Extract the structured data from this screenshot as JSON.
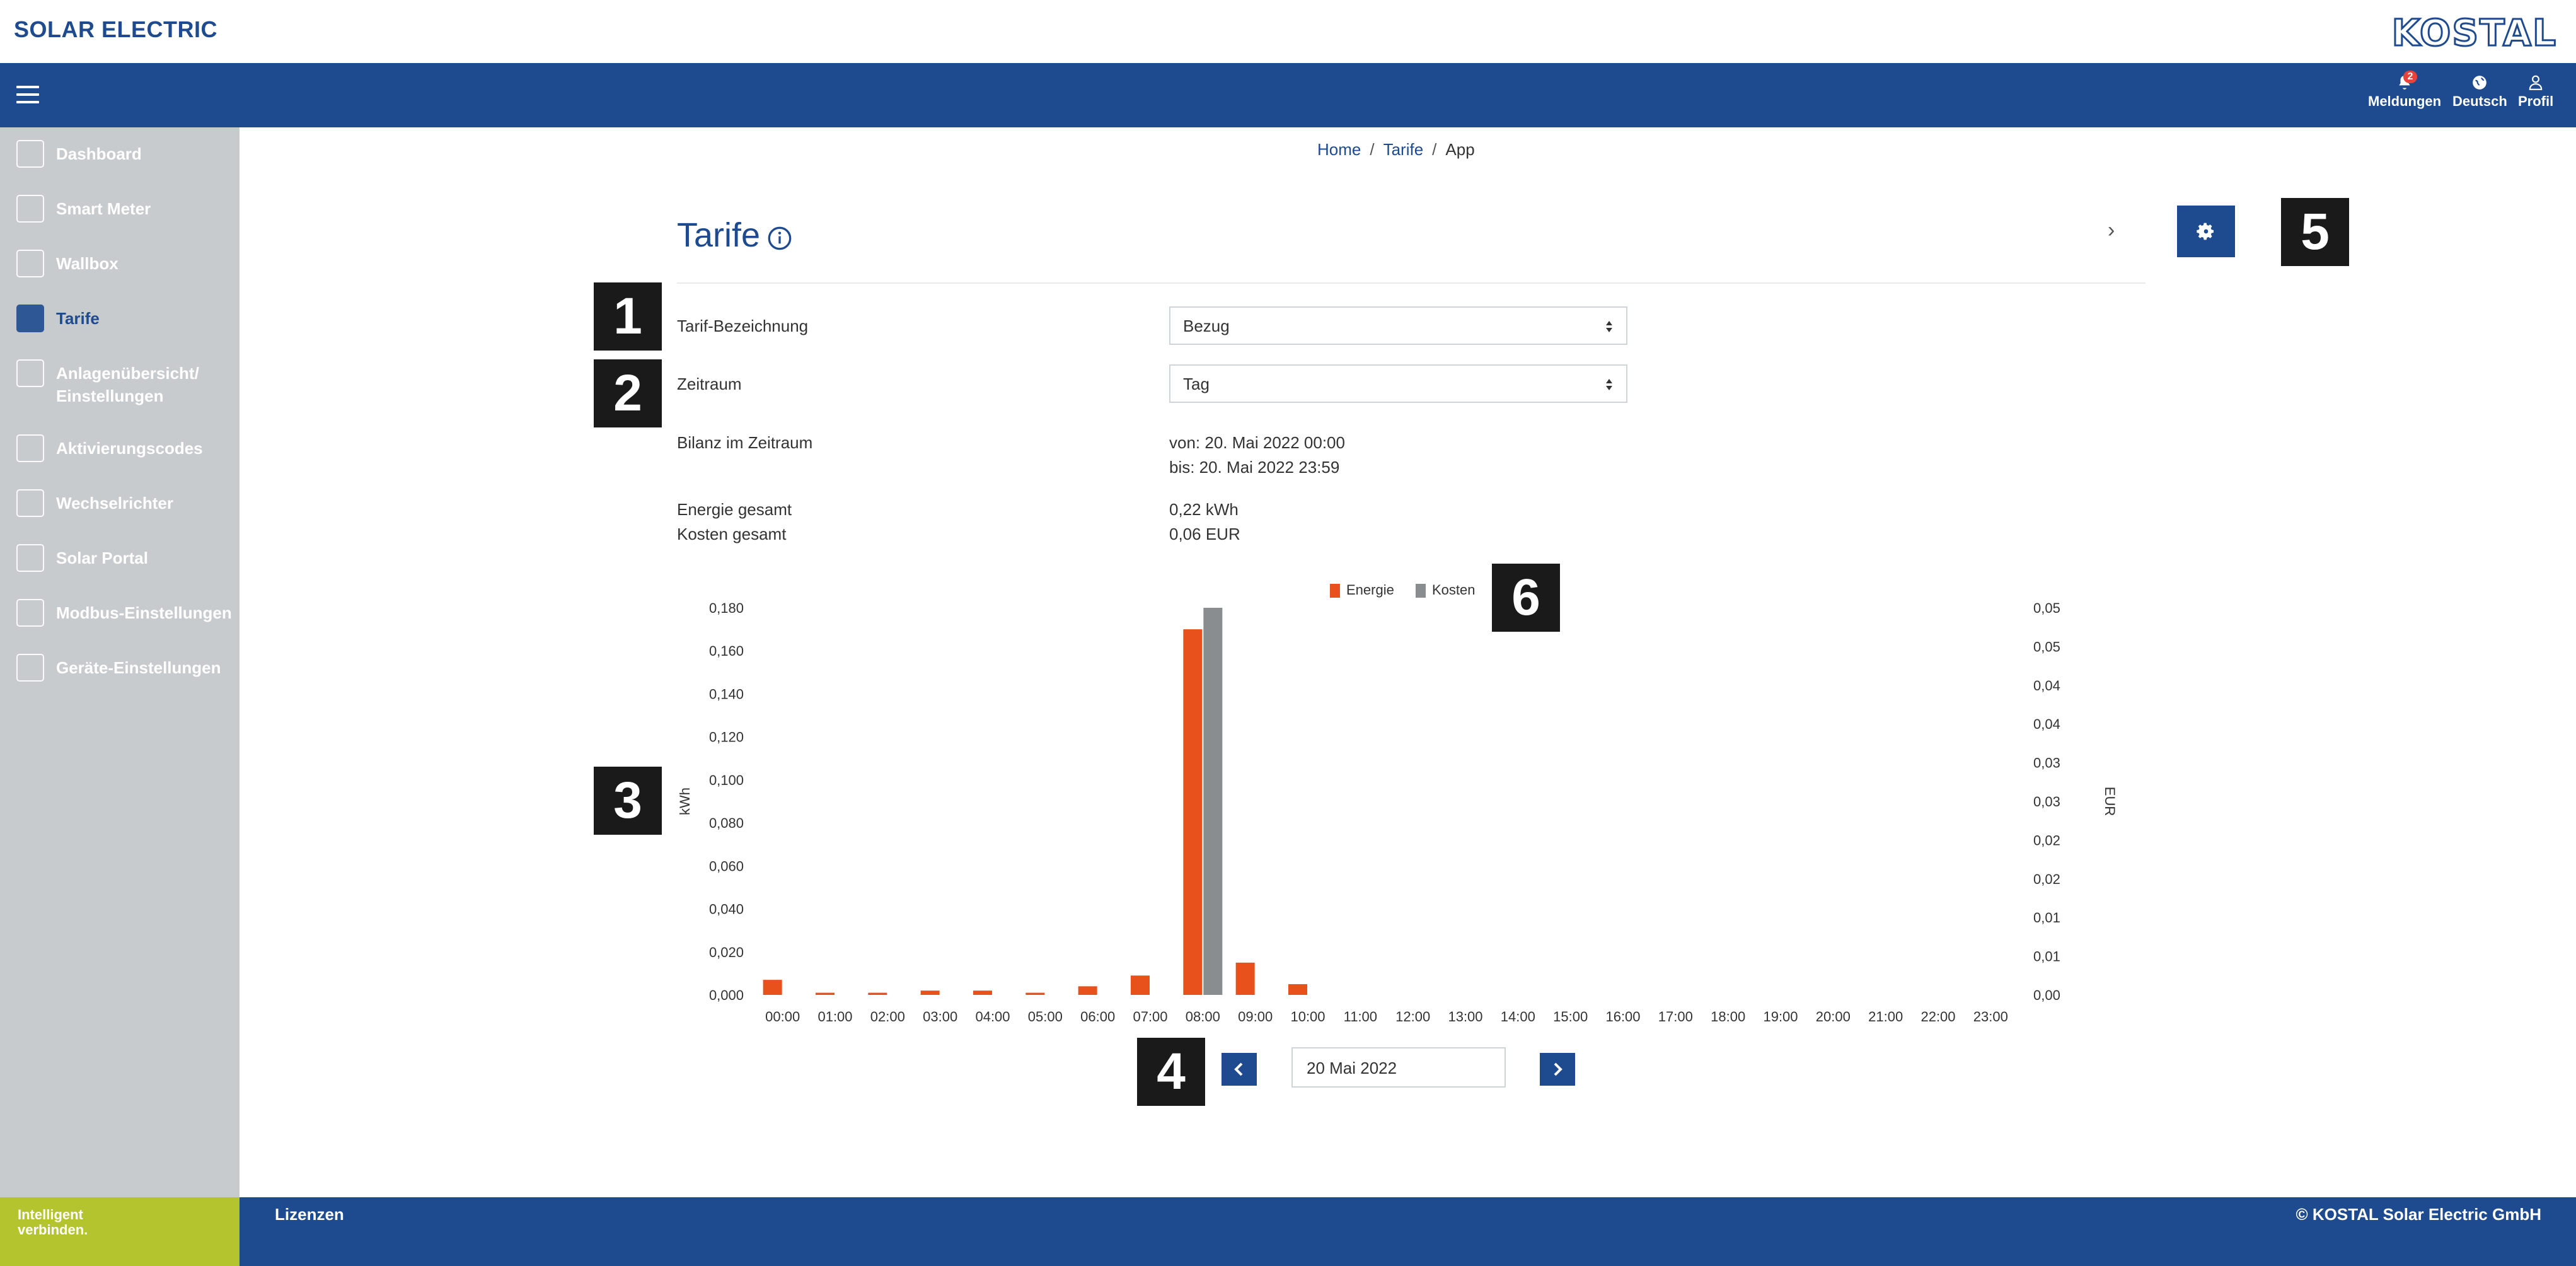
{
  "app": {
    "brand": "SOLAR ELECTRIC",
    "logo": "KOSTAL"
  },
  "navbar": {
    "menu_icon": "hamburger-icon",
    "items": [
      {
        "label": "Meldungen",
        "icon": "bell-icon",
        "badge": "2"
      },
      {
        "label": "Deutsch",
        "icon": "globe-icon"
      },
      {
        "label": "Profil",
        "icon": "user-icon"
      }
    ]
  },
  "sidebar": {
    "items": [
      {
        "label": "Dashboard",
        "icon": "gauge-icon"
      },
      {
        "label": "Smart Meter",
        "icon": "meter-icon"
      },
      {
        "label": "Wallbox",
        "icon": "wallbox-icon"
      },
      {
        "label": "Tarife",
        "icon": "tariff-icon",
        "active": true
      },
      {
        "label": "Anlagenübersicht/",
        "label2": "Einstellungen",
        "icon": "plant-settings-icon"
      },
      {
        "label": "Aktivierungscodes",
        "icon": "activation-icon"
      },
      {
        "label": "Wechselrichter",
        "icon": "inverter-icon"
      },
      {
        "label": "Solar Portal",
        "icon": "portal-icon"
      },
      {
        "label": "Modbus-Einstellungen",
        "icon": "modbus-icon"
      },
      {
        "label": "Geräte-Einstellungen",
        "icon": "device-settings-icon"
      }
    ]
  },
  "breadcrumb": {
    "home": "Home",
    "section": "Tarife",
    "current": "App"
  },
  "page": {
    "title": "Tarife"
  },
  "form": {
    "tariff_label": "Tarif-Bezeichnung",
    "tariff_value": "Bezug",
    "period_label": "Zeitraum",
    "period_value": "Tag",
    "balance_label": "Bilanz im Zeitraum",
    "balance_from": "von: 20. Mai 2022 00:00",
    "balance_to": "bis: 20. Mai 2022 23:59",
    "energy_label": "Energie gesamt",
    "energy_value": "0,22 kWh",
    "cost_label": "Kosten gesamt",
    "cost_value": "0,06 EUR"
  },
  "markers": [
    "1",
    "2",
    "3",
    "4",
    "5",
    "6"
  ],
  "date_nav": {
    "date": "20 Mai 2022"
  },
  "footer": {
    "slogan_line1": "Intelligent",
    "slogan_line2": "verbinden.",
    "link": "Lizenzen",
    "copyright": "© KOSTAL Solar Electric GmbH"
  },
  "colors": {
    "primary": "#1e4b8f",
    "energy": "#e8501c",
    "cost": "#8a8d8f",
    "sidebar": "#c8cbcd",
    "slogan": "#b4c42e"
  },
  "chart_data": {
    "type": "bar",
    "categories": [
      "00:00",
      "01:00",
      "02:00",
      "03:00",
      "04:00",
      "05:00",
      "06:00",
      "07:00",
      "08:00",
      "09:00",
      "10:00",
      "11:00",
      "12:00",
      "13:00",
      "14:00",
      "15:00",
      "16:00",
      "17:00",
      "18:00",
      "19:00",
      "20:00",
      "21:00",
      "22:00",
      "23:00"
    ],
    "series": [
      {
        "name": "Energie",
        "axis": "left",
        "values": [
          0.007,
          0.001,
          0.001,
          0.002,
          0.002,
          0.001,
          0.004,
          0.009,
          0.17,
          0.015,
          0.005,
          0,
          0,
          0,
          0,
          0,
          0,
          0,
          0,
          0,
          0,
          0,
          0,
          0
        ]
      },
      {
        "name": "Kosten",
        "axis": "right",
        "values": [
          0,
          0,
          0,
          0,
          0,
          0,
          0,
          0,
          0.05,
          0,
          0,
          0,
          0,
          0,
          0,
          0,
          0,
          0,
          0,
          0,
          0,
          0,
          0,
          0
        ]
      }
    ],
    "ylabel": "kWh",
    "ylabel_right": "EUR",
    "ylim": [
      0,
      0.18
    ],
    "y_ticks": [
      "0,000",
      "0,020",
      "0,040",
      "0,060",
      "0,080",
      "0,100",
      "0,120",
      "0,140",
      "0,160",
      "0,180"
    ],
    "y_right_ticks": [
      "0,00",
      "0,01",
      "0,01",
      "0,02",
      "0,02",
      "0,03",
      "0,03",
      "0,04",
      "0,04",
      "0,05",
      "0,05"
    ],
    "ylim_right": [
      0,
      0.05
    ],
    "legend": "top-center",
    "grid": false
  }
}
